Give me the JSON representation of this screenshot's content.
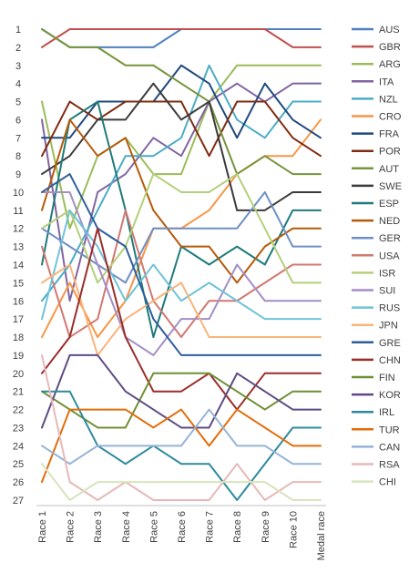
{
  "chart_data": {
    "type": "line",
    "title": "",
    "xlabel": "",
    "ylabel": "",
    "y_inverted": true,
    "ylim": [
      1,
      27
    ],
    "grid": false,
    "legend_placement": "right",
    "x": [
      "Race 1",
      "Race 2",
      "Race 3",
      "Race 4",
      "Race 5",
      "Race 6",
      "Race 7",
      "Race 8",
      "Race 9",
      "Race 10",
      "Medal race"
    ],
    "y_ticks": [
      1,
      2,
      3,
      4,
      5,
      6,
      7,
      8,
      9,
      10,
      11,
      12,
      13,
      14,
      15,
      16,
      17,
      18,
      19,
      20,
      21,
      22,
      23,
      24,
      25,
      26,
      27
    ],
    "series": [
      {
        "name": "AUS",
        "color": "#4f81bd",
        "values": [
          1,
          2,
          2,
          2,
          2,
          1,
          1,
          1,
          1,
          1,
          1
        ]
      },
      {
        "name": "GBR",
        "color": "#c0504d",
        "values": [
          2,
          1,
          1,
          1,
          1,
          1,
          1,
          1,
          1,
          2,
          2
        ]
      },
      {
        "name": "ARG",
        "color": "#9bbb59",
        "values": [
          5,
          12,
          8,
          7,
          9,
          9,
          5,
          3,
          3,
          3,
          3
        ]
      },
      {
        "name": "ITA",
        "color": "#8064a2",
        "values": [
          6,
          16,
          10,
          9,
          7,
          8,
          5,
          4,
          5,
          4,
          4
        ]
      },
      {
        "name": "NZL",
        "color": "#4bacc6",
        "values": [
          16,
          14,
          11,
          8,
          8,
          7,
          3,
          6,
          7,
          5,
          5
        ]
      },
      {
        "name": "CRO",
        "color": "#f79646",
        "values": [
          18,
          15,
          18,
          16,
          12,
          12,
          11,
          9,
          8,
          8,
          6
        ]
      },
      {
        "name": "FRA",
        "color": "#1f497d",
        "values": [
          7,
          7,
          5,
          5,
          5,
          3,
          4,
          7,
          4,
          6,
          7
        ]
      },
      {
        "name": "POR",
        "color": "#7f2b0f",
        "values": [
          8,
          5,
          6,
          5,
          5,
          5,
          8,
          5,
          5,
          7,
          8
        ]
      },
      {
        "name": "AUT",
        "color": "#77933c",
        "values": [
          1,
          2,
          2,
          3,
          3,
          4,
          5,
          9,
          8,
          9,
          9
        ]
      },
      {
        "name": "SWE",
        "color": "#3b3b3b",
        "values": [
          9,
          8,
          6,
          6,
          4,
          6,
          5,
          11,
          11,
          10,
          10
        ]
      },
      {
        "name": "ESP",
        "color": "#1f7a7a",
        "values": [
          14,
          6,
          5,
          11,
          18,
          13,
          14,
          13,
          14,
          11,
          11
        ]
      },
      {
        "name": "NED",
        "color": "#b55a0a",
        "values": [
          11,
          6,
          8,
          7,
          11,
          13,
          13,
          15,
          13,
          12,
          12
        ]
      },
      {
        "name": "GER",
        "color": "#6f8fc6",
        "values": [
          12,
          13,
          14,
          15,
          12,
          12,
          12,
          12,
          10,
          13,
          13
        ]
      },
      {
        "name": "USA",
        "color": "#d07872",
        "values": [
          13,
          18,
          17,
          11,
          16,
          18,
          16,
          16,
          15,
          14,
          14
        ]
      },
      {
        "name": "ISR",
        "color": "#b4cf7a",
        "values": [
          12,
          11,
          15,
          13,
          9,
          10,
          10,
          9,
          12,
          15,
          15
        ]
      },
      {
        "name": "SUI",
        "color": "#a28fc4",
        "values": [
          10,
          10,
          14,
          18,
          19,
          17,
          17,
          14,
          16,
          16,
          16
        ]
      },
      {
        "name": "RUS",
        "color": "#6fc3d8",
        "values": [
          17,
          11,
          13,
          16,
          14,
          16,
          15,
          16,
          17,
          17,
          17
        ]
      },
      {
        "name": "JPN",
        "color": "#f9b47c",
        "values": [
          15,
          14,
          19,
          17,
          16,
          15,
          18,
          18,
          18,
          18,
          18
        ]
      },
      {
        "name": "GRE",
        "color": "#2f5d9c",
        "values": [
          10,
          9,
          12,
          13,
          17,
          19,
          19,
          19,
          19,
          19,
          19
        ]
      },
      {
        "name": "CHN",
        "color": "#9b2d2a",
        "values": [
          20,
          18,
          12,
          18,
          21,
          21,
          20,
          22,
          20,
          20,
          20
        ]
      },
      {
        "name": "FIN",
        "color": "#6e8f34",
        "values": [
          21,
          22,
          23,
          23,
          20,
          20,
          20,
          21,
          22,
          21,
          21
        ]
      },
      {
        "name": "KOR",
        "color": "#5e4a82",
        "values": [
          23,
          19,
          19,
          21,
          22,
          23,
          23,
          20,
          21,
          22,
          22
        ]
      },
      {
        "name": "IRL",
        "color": "#2e8a9e",
        "values": [
          21,
          21,
          24,
          25,
          24,
          25,
          25,
          27,
          25,
          23,
          23
        ]
      },
      {
        "name": "TUR",
        "color": "#e36c09",
        "values": [
          26,
          22,
          22,
          22,
          23,
          22,
          24,
          22,
          23,
          24,
          24
        ]
      },
      {
        "name": "CAN",
        "color": "#95b3d7",
        "values": [
          24,
          25,
          24,
          24,
          24,
          24,
          22,
          24,
          24,
          25,
          25
        ]
      },
      {
        "name": "RSA",
        "color": "#e6b9b8",
        "values": [
          19,
          26,
          27,
          26,
          27,
          27,
          27,
          25,
          27,
          26,
          26
        ]
      },
      {
        "name": "CHI",
        "color": "#d7e4bd",
        "values": [
          25,
          27,
          26,
          26,
          26,
          26,
          26,
          26,
          26,
          27,
          27
        ]
      }
    ]
  }
}
